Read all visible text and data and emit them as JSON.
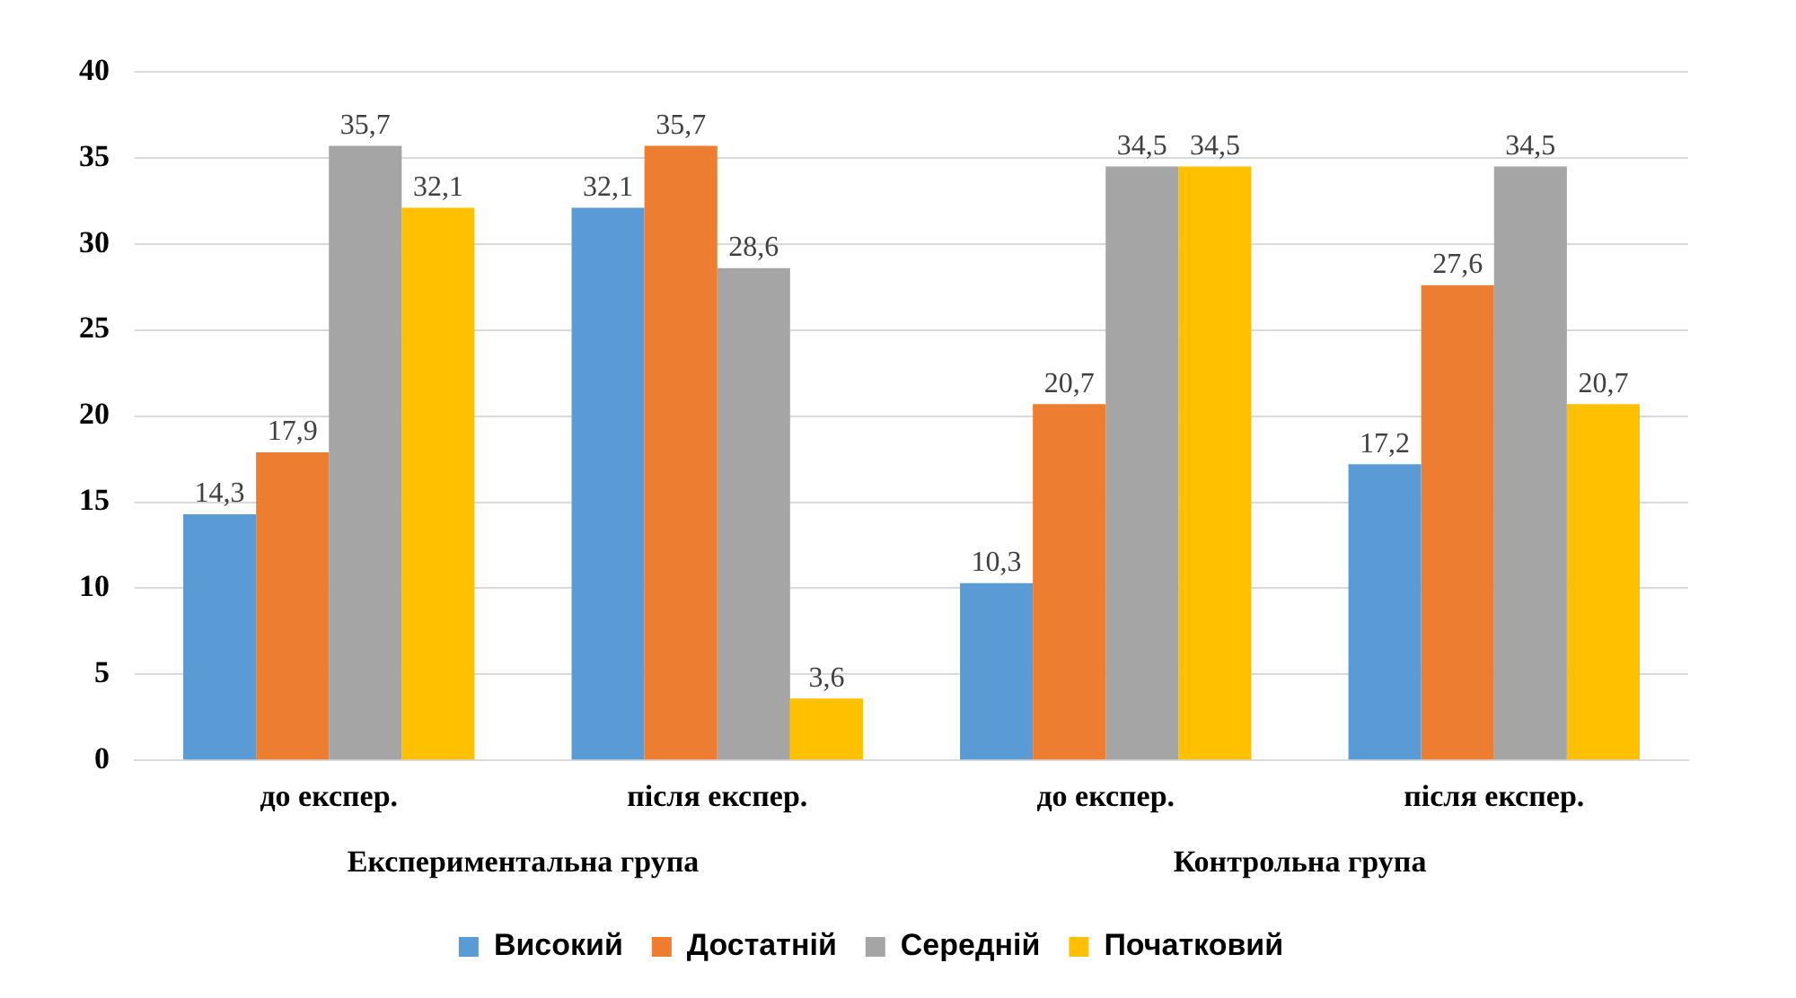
{
  "chart_data": {
    "type": "bar",
    "categories": [
      "до експер.",
      "після експер.",
      "до експер.",
      "після експер."
    ],
    "series": [
      {
        "name": "Високий",
        "color": "#5b9bd5",
        "values": [
          14.3,
          32.1,
          10.3,
          17.2
        ],
        "value_labels": [
          "14,3",
          "32,1",
          "10,3",
          "17,2"
        ]
      },
      {
        "name": "Достатній",
        "color": "#ed7d31",
        "values": [
          17.9,
          35.7,
          20.7,
          27.6
        ],
        "value_labels": [
          "17,9",
          "35,7",
          "20,7",
          "27,6"
        ]
      },
      {
        "name": "Середній",
        "color": "#a5a5a5",
        "values": [
          35.7,
          28.6,
          34.5,
          34.5
        ],
        "value_labels": [
          "35,7",
          "28,6",
          "34,5",
          "34,5"
        ]
      },
      {
        "name": "Початковий",
        "color": "#ffc000",
        "values": [
          32.1,
          3.6,
          34.5,
          20.7
        ],
        "value_labels": [
          "32,1",
          "3,6",
          "34,5",
          "20,7"
        ]
      }
    ],
    "annotations": [
      "Експериментальна група",
      "Контрольна група"
    ],
    "ylim": [
      0,
      40
    ],
    "yticks": [
      0,
      5,
      10,
      15,
      20,
      25,
      30,
      35,
      40
    ],
    "grid": "y",
    "legend": "bottom"
  }
}
